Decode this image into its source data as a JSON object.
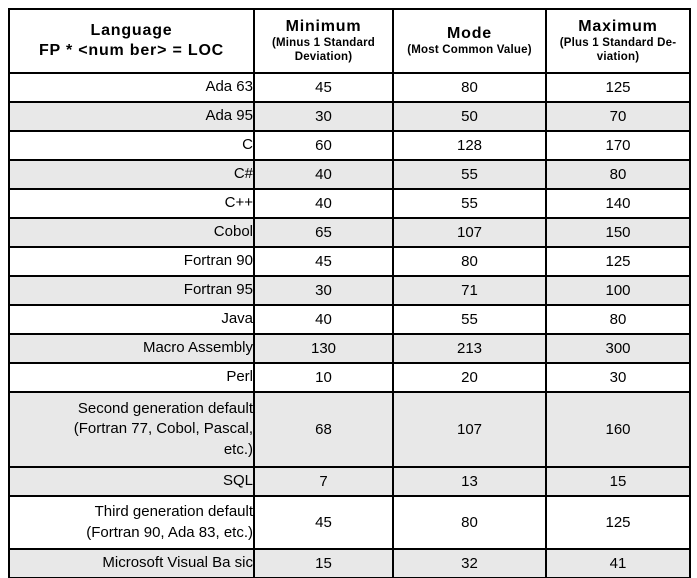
{
  "colors": {
    "border": "#000000",
    "row_shade": "#e8e8e8",
    "background": "#ffffff",
    "text": "#000000"
  },
  "chart_data": {
    "type": "table",
    "header": {
      "language": {
        "title": "Language",
        "formula": "FP * <num ber> = LOC"
      },
      "columns": [
        {
          "title": "Minimum",
          "subtitle": "(Minus 1 Standard\nDeviation)"
        },
        {
          "title": "Mode",
          "subtitle": "(Most Common Value)"
        },
        {
          "title": "Maximum",
          "subtitle": "(Plus 1 Standard De-\nviation)"
        }
      ]
    },
    "rows": [
      {
        "language": "Ada 63",
        "minimum": "45",
        "mode": "80",
        "maximum": "125",
        "shaded": false
      },
      {
        "language": "Ada 95",
        "minimum": "30",
        "mode": "50",
        "maximum": "70",
        "shaded": true
      },
      {
        "language": "C",
        "minimum": "60",
        "mode": "128",
        "maximum": "170",
        "shaded": false
      },
      {
        "language": "C#",
        "minimum": "40",
        "mode": "55",
        "maximum": "80",
        "shaded": true
      },
      {
        "language": "C++",
        "minimum": "40",
        "mode": "55",
        "maximum": "140",
        "shaded": false
      },
      {
        "language": "Cobol",
        "minimum": "65",
        "mode": "107",
        "maximum": "150",
        "shaded": true
      },
      {
        "language": "Fortran 90",
        "minimum": "45",
        "mode": "80",
        "maximum": "125",
        "shaded": false
      },
      {
        "language": "Fortran 95",
        "minimum": "30",
        "mode": "71",
        "maximum": "100",
        "shaded": true
      },
      {
        "language": "Java",
        "minimum": "40",
        "mode": "55",
        "maximum": "80",
        "shaded": false
      },
      {
        "language": "Macro Assembly",
        "minimum": "130",
        "mode": "213",
        "maximum": "300",
        "shaded": true
      },
      {
        "language": "Perl",
        "minimum": "10",
        "mode": "20",
        "maximum": "30",
        "shaded": false
      },
      {
        "language": "Second generation default\n(Fortran 77, Cobol, Pascal,\netc.)",
        "minimum": "68",
        "mode": "107",
        "maximum": "160",
        "shaded": true
      },
      {
        "language": "SQL",
        "minimum": "7",
        "mode": "13",
        "maximum": "15",
        "shaded": true
      },
      {
        "language": "Third generation default\n(Fortran 90, Ada 83, etc.)",
        "minimum": "45",
        "mode": "80",
        "maximum": "125",
        "shaded": false
      },
      {
        "language": "Microsoft Visual Ba sic",
        "minimum": "15",
        "mode": "32",
        "maximum": "41",
        "shaded": true
      }
    ]
  }
}
